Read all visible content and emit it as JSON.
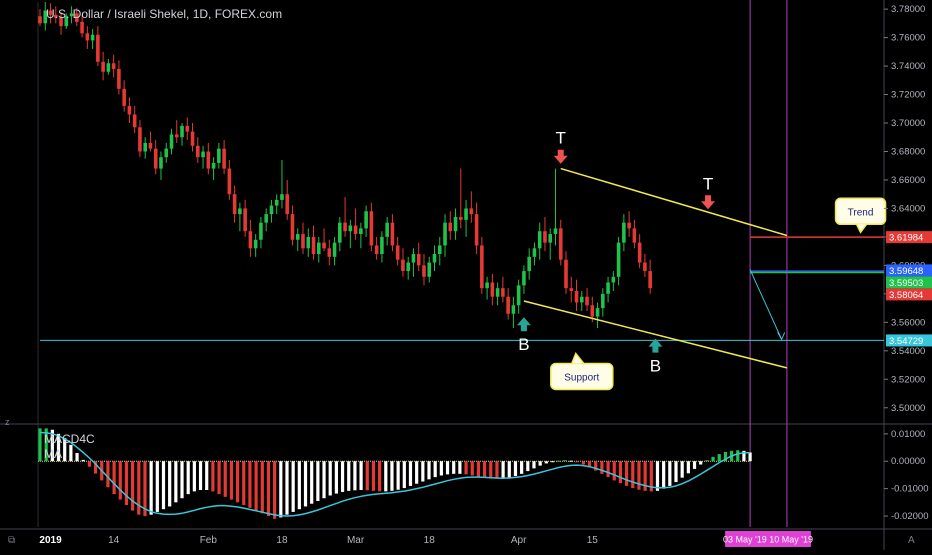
{
  "header": {
    "title": "U.S. Dollar / Israeli Shekel, 1D, FOREX.com"
  },
  "indicator": {
    "macd_label": "MACD4C",
    "ma_label": "MA"
  },
  "annotations": {
    "top_letter": "T",
    "bottom_letter": "B",
    "trend_callout": "Trend",
    "support_callout": "Support"
  },
  "bottom_left_icon": "tradingview-logo-icon",
  "corner_label": "A",
  "colors": {
    "up": "#26a69a",
    "up_bright": "#1fc24a",
    "down": "#e53935",
    "channel": "#f2e94e",
    "support_line": "#38c6dd",
    "resistance_line": "#e53935",
    "green_line": "#1fc24a",
    "blue_line": "#2962ff",
    "vertical_lines": "#b13fc2",
    "highlight_badge": "#e040d6",
    "macd_signal": "#38c6dd"
  },
  "chart_data": {
    "type": "candlestick",
    "title": "U.S. Dollar / Israeli Shekel, 1D, FOREX.com",
    "xlabel": "",
    "ylabel": "",
    "ylim": [
      3.49,
      3.785
    ],
    "y_ticks": [
      "3.78000",
      "3.76000",
      "3.74000",
      "3.72000",
      "3.70000",
      "3.68000",
      "3.66000",
      "3.64000",
      "3.62000",
      "3.60000",
      "3.58000",
      "3.56000",
      "3.54000",
      "3.52000",
      "3.50000"
    ],
    "x_tick_labels": [
      "2019",
      "14",
      "Feb",
      "18",
      "Mar",
      "18",
      "Apr",
      "15"
    ],
    "x_tick_days": [
      2,
      14,
      32,
      46,
      60,
      74,
      91,
      105
    ],
    "x_range_days": [
      0,
      142
    ],
    "price_badges": [
      {
        "label": "3.61984",
        "value": 3.61984,
        "color": "#e53935"
      },
      {
        "label": "3.59648",
        "value": 3.59648,
        "color": "#2962ff"
      },
      {
        "label": "3.59503",
        "value": 3.59503,
        "color": "#1fc24a"
      },
      {
        "label": "3.58064",
        "value": 3.58064,
        "color": "#e53935"
      },
      {
        "label": "3.54729",
        "value": 3.54729,
        "color": "#38c6dd"
      }
    ],
    "horizontal_levels": [
      {
        "value": 3.61984,
        "day_from": 135,
        "color": "#e53935"
      },
      {
        "value": 3.596,
        "day_from": 135,
        "color": "#2962ff"
      },
      {
        "value": 3.59503,
        "day_from": 135,
        "color": "#1fc24a"
      },
      {
        "value": 3.54729,
        "day_from": 0,
        "color": "#38c6dd"
      }
    ],
    "channel_lines": [
      {
        "from": [
          99,
          3.668
        ],
        "to": [
          142,
          3.621
        ],
        "color": "#f2e94e"
      },
      {
        "from": [
          92,
          3.575
        ],
        "to": [
          142,
          3.528
        ],
        "color": "#f2e94e"
      }
    ],
    "projection_arrow": {
      "from": [
        135,
        3.597
      ],
      "to": [
        141,
        3.548
      ]
    },
    "vertical_markers": [
      135,
      142
    ],
    "date_range_badge": "03 May '19  10 May '19",
    "markers": [
      {
        "kind": "top",
        "day": 99,
        "value": 3.67,
        "label": "T"
      },
      {
        "kind": "top",
        "day": 127,
        "value": 3.638,
        "label": "T"
      },
      {
        "kind": "bottom",
        "day": 92,
        "value": 3.565,
        "label": "B"
      },
      {
        "kind": "bottom",
        "day": 117,
        "value": 3.55,
        "label": "B"
      }
    ],
    "callouts": [
      {
        "label": "Trend",
        "day": 156,
        "value": 3.638
      },
      {
        "label": "Support",
        "day": 103,
        "value": 3.522
      }
    ],
    "candles": [
      [
        0,
        3.775,
        3.78,
        3.768,
        3.77
      ],
      [
        1,
        3.77,
        3.785,
        3.765,
        3.779
      ],
      [
        2,
        3.779,
        3.784,
        3.77,
        3.776
      ],
      [
        3,
        3.776,
        3.782,
        3.77,
        3.774
      ],
      [
        4,
        3.774,
        3.778,
        3.762,
        3.768
      ],
      [
        5,
        3.768,
        3.777,
        3.766,
        3.775
      ],
      [
        6,
        3.775,
        3.782,
        3.77,
        3.777
      ],
      [
        7,
        3.777,
        3.781,
        3.768,
        3.771
      ],
      [
        8,
        3.771,
        3.776,
        3.76,
        3.763
      ],
      [
        9,
        3.763,
        3.768,
        3.752,
        3.758
      ],
      [
        10,
        3.758,
        3.766,
        3.752,
        3.762
      ],
      [
        11,
        3.762,
        3.768,
        3.74,
        3.743
      ],
      [
        12,
        3.743,
        3.75,
        3.73,
        3.736
      ],
      [
        13,
        3.736,
        3.745,
        3.734,
        3.742
      ],
      [
        14,
        3.742,
        3.748,
        3.732,
        3.738
      ],
      [
        15,
        3.738,
        3.744,
        3.72,
        3.724
      ],
      [
        16,
        3.724,
        3.73,
        3.708,
        3.712
      ],
      [
        17,
        3.712,
        3.718,
        3.7,
        3.706
      ],
      [
        18,
        3.706,
        3.712,
        3.693,
        3.697
      ],
      [
        19,
        3.697,
        3.702,
        3.676,
        3.68
      ],
      [
        20,
        3.68,
        3.69,
        3.675,
        3.686
      ],
      [
        21,
        3.686,
        3.694,
        3.68,
        3.682
      ],
      [
        22,
        3.682,
        3.688,
        3.664,
        3.668
      ],
      [
        23,
        3.668,
        3.68,
        3.66,
        3.676
      ],
      [
        24,
        3.676,
        3.686,
        3.672,
        3.682
      ],
      [
        25,
        3.682,
        3.696,
        3.678,
        3.692
      ],
      [
        26,
        3.692,
        3.702,
        3.686,
        3.69
      ],
      [
        27,
        3.69,
        3.7,
        3.684,
        3.698
      ],
      [
        28,
        3.698,
        3.704,
        3.688,
        3.694
      ],
      [
        29,
        3.694,
        3.7,
        3.68,
        3.684
      ],
      [
        30,
        3.684,
        3.69,
        3.672,
        3.676
      ],
      [
        31,
        3.676,
        3.684,
        3.668,
        3.68
      ],
      [
        32,
        3.68,
        3.686,
        3.664,
        3.668
      ],
      [
        33,
        3.668,
        3.676,
        3.66,
        3.672
      ],
      [
        34,
        3.672,
        3.686,
        3.668,
        3.682
      ],
      [
        35,
        3.682,
        3.688,
        3.664,
        3.668
      ],
      [
        36,
        3.668,
        3.674,
        3.646,
        3.65
      ],
      [
        37,
        3.65,
        3.656,
        3.63,
        3.636
      ],
      [
        38,
        3.636,
        3.644,
        3.624,
        3.64
      ],
      [
        39,
        3.64,
        3.646,
        3.62,
        3.624
      ],
      [
        40,
        3.624,
        3.632,
        3.606,
        3.612
      ],
      [
        41,
        3.612,
        3.622,
        3.606,
        3.618
      ],
      [
        42,
        3.618,
        3.634,
        3.612,
        3.63
      ],
      [
        43,
        3.63,
        3.64,
        3.624,
        3.636
      ],
      [
        44,
        3.636,
        3.646,
        3.63,
        3.642
      ],
      [
        45,
        3.642,
        3.65,
        3.636,
        3.646
      ],
      [
        46,
        3.646,
        3.674,
        3.64,
        3.65
      ],
      [
        47,
        3.65,
        3.66,
        3.632,
        3.636
      ],
      [
        48,
        3.636,
        3.642,
        3.614,
        3.618
      ],
      [
        49,
        3.618,
        3.626,
        3.61,
        3.622
      ],
      [
        50,
        3.622,
        3.63,
        3.608,
        3.612
      ],
      [
        51,
        3.612,
        3.626,
        3.606,
        3.62
      ],
      [
        52,
        3.62,
        3.628,
        3.604,
        3.608
      ],
      [
        53,
        3.608,
        3.62,
        3.602,
        3.616
      ],
      [
        54,
        3.616,
        3.626,
        3.61,
        3.612
      ],
      [
        55,
        3.612,
        3.618,
        3.6,
        3.606
      ],
      [
        56,
        3.606,
        3.62,
        3.6,
        3.616
      ],
      [
        57,
        3.616,
        3.634,
        3.61,
        3.63
      ],
      [
        58,
        3.63,
        3.648,
        3.62,
        3.624
      ],
      [
        59,
        3.624,
        3.632,
        3.612,
        3.628
      ],
      [
        60,
        3.628,
        3.64,
        3.618,
        3.622
      ],
      [
        61,
        3.622,
        3.63,
        3.612,
        3.626
      ],
      [
        62,
        3.626,
        3.642,
        3.62,
        3.638
      ],
      [
        63,
        3.638,
        3.644,
        3.61,
        3.614
      ],
      [
        64,
        3.614,
        3.62,
        3.604,
        3.608
      ],
      [
        65,
        3.608,
        3.624,
        3.602,
        3.62
      ],
      [
        66,
        3.62,
        3.634,
        3.614,
        3.63
      ],
      [
        67,
        3.63,
        3.636,
        3.61,
        3.614
      ],
      [
        68,
        3.614,
        3.62,
        3.6,
        3.604
      ],
      [
        69,
        3.604,
        3.612,
        3.592,
        3.596
      ],
      [
        70,
        3.596,
        3.606,
        3.59,
        3.602
      ],
      [
        71,
        3.602,
        3.612,
        3.592,
        3.608
      ],
      [
        72,
        3.608,
        3.616,
        3.596,
        3.6
      ],
      [
        73,
        3.6,
        3.608,
        3.586,
        3.592
      ],
      [
        74,
        3.592,
        3.606,
        3.588,
        3.602
      ],
      [
        75,
        3.602,
        3.614,
        3.596,
        3.608
      ],
      [
        76,
        3.608,
        3.62,
        3.6,
        3.614
      ],
      [
        77,
        3.614,
        3.636,
        3.606,
        3.63
      ],
      [
        78,
        3.63,
        3.638,
        3.618,
        3.624
      ],
      [
        79,
        3.624,
        3.64,
        3.618,
        3.634
      ],
      [
        80,
        3.634,
        3.668,
        3.626,
        3.632
      ],
      [
        81,
        3.632,
        3.646,
        3.62,
        3.64
      ],
      [
        82,
        3.64,
        3.652,
        3.63,
        3.636
      ],
      [
        83,
        3.636,
        3.644,
        3.608,
        3.614
      ],
      [
        84,
        3.614,
        3.62,
        3.58,
        3.584
      ],
      [
        85,
        3.584,
        3.592,
        3.576,
        3.588
      ],
      [
        86,
        3.588,
        3.594,
        3.572,
        3.578
      ],
      [
        87,
        3.578,
        3.588,
        3.572,
        3.584
      ],
      [
        88,
        3.584,
        3.592,
        3.574,
        3.578
      ],
      [
        89,
        3.578,
        3.584,
        3.562,
        3.566
      ],
      [
        90,
        3.566,
        3.578,
        3.556,
        3.572
      ],
      [
        91,
        3.572,
        3.59,
        3.566,
        3.586
      ],
      [
        92,
        3.586,
        3.6,
        3.58,
        3.596
      ],
      [
        93,
        3.596,
        3.612,
        3.59,
        3.606
      ],
      [
        94,
        3.606,
        3.616,
        3.6,
        3.612
      ],
      [
        95,
        3.612,
        3.63,
        3.604,
        3.624
      ],
      [
        96,
        3.624,
        3.634,
        3.61,
        3.616
      ],
      [
        97,
        3.616,
        3.626,
        3.604,
        3.622
      ],
      [
        98,
        3.622,
        3.668,
        3.614,
        3.626
      ],
      [
        99,
        3.626,
        3.632,
        3.6,
        3.604
      ],
      [
        100,
        3.604,
        3.61,
        3.58,
        3.584
      ],
      [
        101,
        3.584,
        3.592,
        3.574,
        3.582
      ],
      [
        102,
        3.582,
        3.59,
        3.568,
        3.574
      ],
      [
        103,
        3.574,
        3.582,
        3.568,
        3.578
      ],
      [
        104,
        3.578,
        3.584,
        3.568,
        3.572
      ],
      [
        105,
        3.572,
        3.578,
        3.56,
        3.564
      ],
      [
        106,
        3.564,
        3.574,
        3.556,
        3.57
      ],
      [
        107,
        3.57,
        3.584,
        3.564,
        3.58
      ],
      [
        108,
        3.58,
        3.592,
        3.574,
        3.588
      ],
      [
        109,
        3.588,
        3.596,
        3.582,
        3.592
      ],
      [
        110,
        3.592,
        3.62,
        3.586,
        3.616
      ],
      [
        111,
        3.616,
        3.636,
        3.61,
        3.63
      ],
      [
        112,
        3.63,
        3.638,
        3.62,
        3.626
      ],
      [
        113,
        3.626,
        3.632,
        3.612,
        3.616
      ],
      [
        114,
        3.616,
        3.622,
        3.598,
        3.602
      ],
      [
        115,
        3.602,
        3.608,
        3.592,
        3.596
      ],
      [
        116,
        3.596,
        3.604,
        3.58,
        3.584
      ]
    ],
    "macd": {
      "ylim": [
        -0.024,
        0.0125
      ],
      "y_ticks": [
        "0.01000",
        "0.00000",
        "-0.01000",
        "-0.02000"
      ],
      "x_start_day": 0,
      "x_end_day": 135,
      "histogram": [
        0.012,
        0.012,
        0.0115,
        0.01,
        0.0085,
        0.006,
        0.003,
        0.0005,
        -0.002,
        -0.0045,
        -0.007,
        -0.0095,
        -0.012,
        -0.014,
        -0.016,
        -0.018,
        -0.0195,
        -0.02,
        -0.0195,
        -0.0185,
        -0.0175,
        -0.0165,
        -0.015,
        -0.0135,
        -0.012,
        -0.011,
        -0.0105,
        -0.0105,
        -0.011,
        -0.012,
        -0.013,
        -0.014,
        -0.015,
        -0.016,
        -0.017,
        -0.018,
        -0.019,
        -0.02,
        -0.021,
        -0.0205,
        -0.0195,
        -0.0185,
        -0.0175,
        -0.0165,
        -0.0155,
        -0.0145,
        -0.0135,
        -0.0125,
        -0.0118,
        -0.0112,
        -0.0108,
        -0.0106,
        -0.0105,
        -0.0106,
        -0.0108,
        -0.011,
        -0.011,
        -0.0108,
        -0.0104,
        -0.0098,
        -0.009,
        -0.0082,
        -0.0074,
        -0.0066,
        -0.0058,
        -0.0052,
        -0.0048,
        -0.0046,
        -0.0046,
        -0.0048,
        -0.0052,
        -0.0056,
        -0.006,
        -0.0062,
        -0.0064,
        -0.0064,
        -0.006,
        -0.0054,
        -0.0046,
        -0.0036,
        -0.0026,
        -0.0016,
        -0.0008,
        -0.0002,
        0.0002,
        0.0004,
        0.0002,
        -0.0004,
        -0.0012,
        -0.0022,
        -0.0034,
        -0.0046,
        -0.0058,
        -0.007,
        -0.008,
        -0.009,
        -0.0098,
        -0.0104,
        -0.0108,
        -0.011,
        -0.0108,
        -0.01,
        -0.009,
        -0.0076,
        -0.006,
        -0.0044,
        -0.0028,
        -0.0012,
        0.0004,
        0.0016,
        0.0026,
        0.0034,
        0.0038,
        0.004,
        0.0038,
        0.0032
      ],
      "signal": [
        0.0105,
        0.0104,
        0.01,
        0.0093,
        0.0082,
        0.0068,
        0.0051,
        0.0032,
        0.0012,
        -0.001,
        -0.0034,
        -0.0058,
        -0.0082,
        -0.0105,
        -0.0126,
        -0.0145,
        -0.0161,
        -0.0174,
        -0.0184,
        -0.019,
        -0.0193,
        -0.0194,
        -0.0193,
        -0.019,
        -0.0185,
        -0.0179,
        -0.0173,
        -0.0168,
        -0.0164,
        -0.0162,
        -0.0162,
        -0.0164,
        -0.0167,
        -0.0171,
        -0.0176,
        -0.0181,
        -0.0186,
        -0.0191,
        -0.0196,
        -0.0199,
        -0.02,
        -0.0199,
        -0.0196,
        -0.0191,
        -0.0185,
        -0.0178,
        -0.017,
        -0.0162,
        -0.0154,
        -0.0146,
        -0.0139,
        -0.0133,
        -0.0128,
        -0.0124,
        -0.0121,
        -0.0119,
        -0.0117,
        -0.0115,
        -0.0112,
        -0.0109,
        -0.0105,
        -0.01,
        -0.0095,
        -0.0089,
        -0.0083,
        -0.0077,
        -0.0071,
        -0.0066,
        -0.0062,
        -0.0059,
        -0.0058,
        -0.0058,
        -0.0059,
        -0.006,
        -0.0061,
        -0.0062,
        -0.0061,
        -0.0059,
        -0.0056,
        -0.0052,
        -0.0047,
        -0.0041,
        -0.0035,
        -0.0029,
        -0.0023,
        -0.0018,
        -0.0015,
        -0.0014,
        -0.0016,
        -0.002,
        -0.0026,
        -0.0033,
        -0.0041,
        -0.005,
        -0.0059,
        -0.0068,
        -0.0076,
        -0.0083,
        -0.0089,
        -0.0094,
        -0.0097,
        -0.0097,
        -0.0095,
        -0.009,
        -0.0082,
        -0.0072,
        -0.006,
        -0.0047,
        -0.0033,
        -0.0019,
        -0.0005,
        0.0008,
        0.0019,
        0.0027,
        0.0031,
        0.0031
      ]
    }
  }
}
